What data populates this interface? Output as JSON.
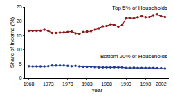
{
  "chart_data": {
    "type": "line",
    "x_label": "Year",
    "y_label": "Share of Income (%)",
    "x": [
      1968,
      1969,
      1970,
      1971,
      1972,
      1973,
      1974,
      1975,
      1976,
      1977,
      1978,
      1979,
      1980,
      1981,
      1982,
      1983,
      1984,
      1985,
      1986,
      1987,
      1988,
      1989,
      1990,
      1991,
      1992,
      1993,
      1994,
      1995,
      1996,
      1997,
      1998,
      1999,
      2000,
      2001,
      2002,
      2003
    ],
    "series": [
      {
        "name": "Top 5% of Households",
        "color": "#8b1a1a",
        "marker": "circle",
        "values": [
          16.6,
          16.6,
          16.6,
          16.7,
          17.0,
          16.6,
          15.9,
          15.9,
          16.0,
          16.1,
          16.2,
          16.4,
          15.8,
          15.6,
          16.2,
          16.4,
          16.5,
          17.0,
          17.5,
          18.2,
          18.3,
          18.9,
          18.6,
          18.1,
          18.6,
          21.0,
          21.2,
          21.0,
          21.4,
          21.7,
          21.4,
          21.5,
          22.1,
          22.4,
          21.7,
          21.5
        ]
      },
      {
        "name": "Bottom 20% of Households",
        "color": "#1f3a93",
        "marker": "circle",
        "values": [
          4.2,
          4.1,
          4.1,
          4.1,
          4.1,
          4.2,
          4.4,
          4.4,
          4.4,
          4.4,
          4.3,
          4.2,
          4.3,
          4.1,
          4.0,
          4.0,
          4.0,
          3.9,
          3.8,
          3.8,
          3.8,
          3.8,
          3.9,
          3.8,
          3.8,
          3.6,
          3.6,
          3.7,
          3.6,
          3.6,
          3.6,
          3.6,
          3.6,
          3.5,
          3.5,
          3.4
        ]
      }
    ],
    "xlim": [
      1967,
      2004
    ],
    "xticks": [
      1968,
      1973,
      1978,
      1983,
      1988,
      1993,
      1998,
      2002
    ],
    "ylim": [
      0,
      25
    ],
    "yticks": [
      0,
      5,
      10,
      15,
      20,
      25
    ],
    "grid": false
  }
}
